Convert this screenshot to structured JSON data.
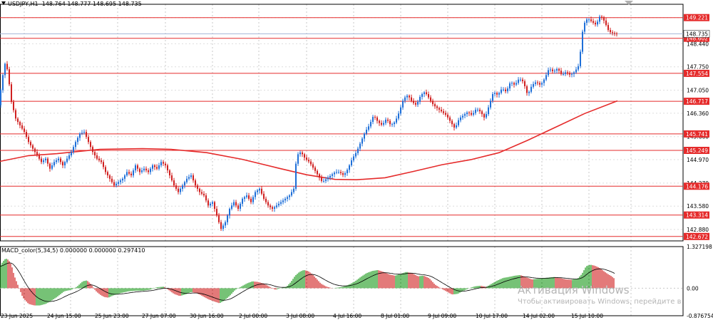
{
  "header": {
    "symbol": "USDJPY,H1",
    "open": "148.764",
    "high": "148.777",
    "low": "148.695",
    "close": "148.735"
  },
  "macd_header": "MACD_color(5,34,5) 0.000000 0.000000 0.297410",
  "watermark": {
    "line1": "Активация Windows",
    "line2": "Чтобы активировать Windows, перейдите в"
  },
  "chart_data": [
    {
      "type": "candlestick",
      "title": "USDJPY,H1",
      "ylim": [
        142.54,
        149.62
      ],
      "y_ticks": [
        "149.220",
        "148.440",
        "147.750",
        "147.050",
        "146.360",
        "145.660",
        "144.970",
        "144.270",
        "143.580",
        "142.880"
      ],
      "x_ticks": [
        "23 Jun 2025",
        "24 Jun 15:00",
        "25 Jun 23:00",
        "27 Jun 07:00",
        "30 Jun 16:00",
        "2 Jul 00:00",
        "3 Jul 08:00",
        "4 Jul 16:00",
        "8 Jul 01:00",
        "9 Jul 09:00",
        "10 Jul 17:00",
        "14 Jul 02:00",
        "15 Jul 10:00"
      ],
      "grid": true,
      "current_price": "148.735",
      "horizontal_levels": [
        "149.221",
        "148.602",
        "147.554",
        "146.717",
        "145.741",
        "145.249",
        "144.176",
        "143.314",
        "142.672"
      ],
      "close_path": [
        [
          0,
          146.9
        ],
        [
          4,
          147.5
        ],
        [
          8,
          147.95
        ],
        [
          12,
          147.4
        ],
        [
          16,
          146.7
        ],
        [
          22,
          146.2
        ],
        [
          28,
          146.0
        ],
        [
          34,
          145.8
        ],
        [
          40,
          145.5
        ],
        [
          46,
          145.3
        ],
        [
          52,
          145.1
        ],
        [
          58,
          144.9
        ],
        [
          64,
          145.0
        ],
        [
          70,
          144.7
        ],
        [
          76,
          144.9
        ],
        [
          82,
          145.0
        ],
        [
          88,
          144.8
        ],
        [
          94,
          145.0
        ],
        [
          100,
          145.2
        ],
        [
          106,
          145.5
        ],
        [
          112,
          145.75
        ],
        [
          118,
          145.8
        ],
        [
          124,
          145.5
        ],
        [
          130,
          145.2
        ],
        [
          136,
          145.0
        ],
        [
          142,
          144.9
        ],
        [
          148,
          144.6
        ],
        [
          154,
          144.4
        ],
        [
          160,
          144.2
        ],
        [
          166,
          144.3
        ],
        [
          172,
          144.4
        ],
        [
          178,
          144.6
        ],
        [
          184,
          144.5
        ],
        [
          190,
          144.8
        ],
        [
          196,
          144.6
        ],
        [
          202,
          144.7
        ],
        [
          208,
          144.6
        ],
        [
          214,
          144.8
        ],
        [
          220,
          144.7
        ],
        [
          226,
          144.9
        ],
        [
          232,
          144.8
        ],
        [
          238,
          144.5
        ],
        [
          244,
          144.2
        ],
        [
          250,
          144.0
        ],
        [
          256,
          144.2
        ],
        [
          262,
          144.4
        ],
        [
          268,
          144.5
        ],
        [
          274,
          144.2
        ],
        [
          280,
          144.0
        ],
        [
          286,
          143.9
        ],
        [
          292,
          143.6
        ],
        [
          298,
          143.7
        ],
        [
          304,
          143.3
        ],
        [
          310,
          142.9
        ],
        [
          316,
          143.1
        ],
        [
          322,
          143.5
        ],
        [
          328,
          143.7
        ],
        [
          334,
          143.5
        ],
        [
          340,
          143.8
        ],
        [
          346,
          143.9
        ],
        [
          352,
          143.7
        ],
        [
          358,
          144.0
        ],
        [
          364,
          144.1
        ],
        [
          370,
          143.8
        ],
        [
          376,
          143.6
        ],
        [
          382,
          143.5
        ],
        [
          388,
          143.6
        ],
        [
          394,
          143.7
        ],
        [
          400,
          143.8
        ],
        [
          406,
          143.9
        ],
        [
          412,
          144.1
        ],
        [
          416,
          145.1
        ],
        [
          422,
          145.2
        ],
        [
          428,
          145.0
        ],
        [
          434,
          144.9
        ],
        [
          440,
          144.7
        ],
        [
          446,
          144.5
        ],
        [
          452,
          144.3
        ],
        [
          458,
          144.4
        ],
        [
          464,
          144.5
        ],
        [
          470,
          144.6
        ],
        [
          476,
          144.6
        ],
        [
          482,
          144.5
        ],
        [
          488,
          144.7
        ],
        [
          494,
          145.0
        ],
        [
          500,
          145.2
        ],
        [
          506,
          145.5
        ],
        [
          512,
          145.8
        ],
        [
          518,
          146.0
        ],
        [
          524,
          146.3
        ],
        [
          530,
          146.1
        ],
        [
          536,
          146.0
        ],
        [
          542,
          146.2
        ],
        [
          548,
          146.0
        ],
        [
          554,
          146.1
        ],
        [
          560,
          146.4
        ],
        [
          566,
          146.8
        ],
        [
          572,
          146.9
        ],
        [
          578,
          146.7
        ],
        [
          584,
          146.6
        ],
        [
          590,
          146.9
        ],
        [
          596,
          147.0
        ],
        [
          602,
          146.8
        ],
        [
          608,
          146.6
        ],
        [
          614,
          146.5
        ],
        [
          620,
          146.4
        ],
        [
          626,
          146.3
        ],
        [
          632,
          146.1
        ],
        [
          638,
          145.9
        ],
        [
          644,
          146.2
        ],
        [
          650,
          146.3
        ],
        [
          656,
          146.4
        ],
        [
          662,
          146.3
        ],
        [
          668,
          146.5
        ],
        [
          674,
          146.4
        ],
        [
          680,
          146.2
        ],
        [
          686,
          146.6
        ],
        [
          692,
          147.0
        ],
        [
          698,
          146.9
        ],
        [
          704,
          147.1
        ],
        [
          710,
          147.0
        ],
        [
          716,
          147.3
        ],
        [
          722,
          147.2
        ],
        [
          728,
          147.4
        ],
        [
          734,
          147.3
        ],
        [
          740,
          146.9
        ],
        [
          746,
          147.2
        ],
        [
          752,
          147.3
        ],
        [
          758,
          147.2
        ],
        [
          764,
          147.4
        ],
        [
          770,
          147.7
        ],
        [
          776,
          147.6
        ],
        [
          782,
          147.7
        ],
        [
          788,
          147.5
        ],
        [
          794,
          147.6
        ],
        [
          800,
          147.5
        ],
        [
          806,
          147.6
        ],
        [
          812,
          147.8
        ],
        [
          818,
          149.0
        ],
        [
          824,
          149.2
        ],
        [
          830,
          149.1
        ],
        [
          836,
          149.0
        ],
        [
          842,
          149.3
        ],
        [
          848,
          149.1
        ],
        [
          854,
          148.8
        ],
        [
          860,
          148.75
        ],
        [
          866,
          148.735
        ]
      ],
      "ma_path": [
        [
          0,
          144.92
        ],
        [
          40,
          145.09
        ],
        [
          80,
          145.15
        ],
        [
          140,
          145.28
        ],
        [
          200,
          145.3
        ],
        [
          240,
          145.28
        ],
        [
          290,
          145.18
        ],
        [
          340,
          144.98
        ],
        [
          390,
          144.72
        ],
        [
          430,
          144.52
        ],
        [
          470,
          144.38
        ],
        [
          500,
          144.37
        ],
        [
          540,
          144.43
        ],
        [
          580,
          144.62
        ],
        [
          620,
          144.82
        ],
        [
          660,
          144.97
        ],
        [
          700,
          145.18
        ],
        [
          740,
          145.55
        ],
        [
          780,
          145.95
        ],
        [
          820,
          146.35
        ],
        [
          866,
          146.73
        ]
      ]
    },
    {
      "type": "bar",
      "title": "MACD_color(5,34,5)",
      "ylim": [
        -0.877,
        1.327
      ],
      "y_ticks": [
        "1.327198",
        "0.00",
        "-0.876754"
      ],
      "histogram": [
        [
          0,
          0.7
        ],
        [
          4,
          0.85
        ],
        [
          8,
          0.95
        ],
        [
          12,
          0.9
        ],
        [
          16,
          0.75
        ],
        [
          20,
          0.4
        ],
        [
          26,
          0.05
        ],
        [
          32,
          -0.3
        ],
        [
          40,
          -0.5
        ],
        [
          48,
          -0.55
        ],
        [
          56,
          -0.55
        ],
        [
          64,
          -0.5
        ],
        [
          72,
          -0.4
        ],
        [
          80,
          -0.28
        ],
        [
          90,
          -0.1
        ],
        [
          100,
          -0.05
        ],
        [
          108,
          0.05
        ],
        [
          116,
          0.22
        ],
        [
          122,
          0.25
        ],
        [
          128,
          0.12
        ],
        [
          134,
          -0.08
        ],
        [
          140,
          -0.2
        ],
        [
          146,
          -0.28
        ],
        [
          152,
          -0.3
        ],
        [
          160,
          -0.22
        ],
        [
          170,
          -0.15
        ],
        [
          180,
          -0.1
        ],
        [
          190,
          -0.08
        ],
        [
          200,
          -0.08
        ],
        [
          210,
          -0.05
        ],
        [
          220,
          0.03
        ],
        [
          230,
          0.05
        ],
        [
          236,
          -0.05
        ],
        [
          244,
          -0.18
        ],
        [
          252,
          -0.25
        ],
        [
          260,
          -0.2
        ],
        [
          268,
          -0.12
        ],
        [
          276,
          -0.16
        ],
        [
          284,
          -0.25
        ],
        [
          292,
          -0.35
        ],
        [
          300,
          -0.42
        ],
        [
          308,
          -0.48
        ],
        [
          314,
          -0.4
        ],
        [
          322,
          -0.25
        ],
        [
          330,
          -0.05
        ],
        [
          338,
          0.05
        ],
        [
          346,
          0.15
        ],
        [
          354,
          0.22
        ],
        [
          362,
          0.2
        ],
        [
          370,
          0.15
        ],
        [
          378,
          0.05
        ],
        [
          386,
          -0.05
        ],
        [
          394,
          0.0
        ],
        [
          402,
          0.05
        ],
        [
          408,
          0.2
        ],
        [
          414,
          0.4
        ],
        [
          420,
          0.52
        ],
        [
          426,
          0.58
        ],
        [
          432,
          0.55
        ],
        [
          438,
          0.45
        ],
        [
          444,
          0.3
        ],
        [
          450,
          0.15
        ],
        [
          458,
          0.05
        ],
        [
          466,
          0.0
        ],
        [
          474,
          0.02
        ],
        [
          482,
          0.05
        ],
        [
          490,
          0.12
        ],
        [
          498,
          0.22
        ],
        [
          506,
          0.36
        ],
        [
          514,
          0.48
        ],
        [
          522,
          0.55
        ],
        [
          530,
          0.58
        ],
        [
          538,
          0.52
        ],
        [
          546,
          0.44
        ],
        [
          554,
          0.4
        ],
        [
          562,
          0.46
        ],
        [
          570,
          0.52
        ],
        [
          578,
          0.48
        ],
        [
          586,
          0.38
        ],
        [
          594,
          0.4
        ],
        [
          602,
          0.32
        ],
        [
          610,
          0.12
        ],
        [
          618,
          0.0
        ],
        [
          626,
          -0.1
        ],
        [
          634,
          -0.2
        ],
        [
          642,
          -0.18
        ],
        [
          650,
          -0.08
        ],
        [
          658,
          0.0
        ],
        [
          666,
          0.06
        ],
        [
          674,
          0.08
        ],
        [
          682,
          0.04
        ],
        [
          690,
          0.15
        ],
        [
          698,
          0.25
        ],
        [
          706,
          0.33
        ],
        [
          714,
          0.36
        ],
        [
          722,
          0.4
        ],
        [
          730,
          0.42
        ],
        [
          738,
          0.35
        ],
        [
          746,
          0.28
        ],
        [
          754,
          0.3
        ],
        [
          762,
          0.32
        ],
        [
          770,
          0.34
        ],
        [
          778,
          0.36
        ],
        [
          786,
          0.32
        ],
        [
          794,
          0.28
        ],
        [
          802,
          0.27
        ],
        [
          810,
          0.3
        ],
        [
          816,
          0.45
        ],
        [
          822,
          0.7
        ],
        [
          828,
          0.75
        ],
        [
          834,
          0.72
        ],
        [
          840,
          0.66
        ],
        [
          846,
          0.56
        ],
        [
          852,
          0.46
        ],
        [
          858,
          0.38
        ],
        [
          862,
          0.3
        ]
      ]
    }
  ]
}
